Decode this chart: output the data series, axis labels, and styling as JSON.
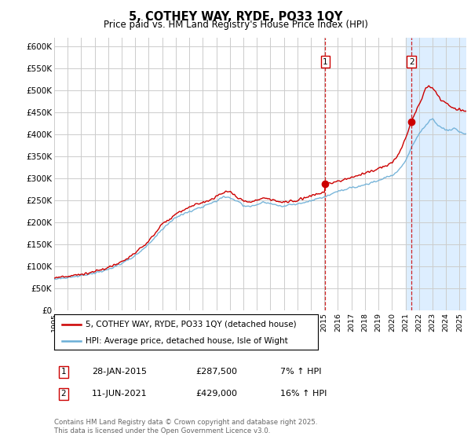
{
  "title": "5, COTHEY WAY, RYDE, PO33 1QY",
  "subtitle": "Price paid vs. HM Land Registry's House Price Index (HPI)",
  "ylim": [
    0,
    620000
  ],
  "yticks": [
    0,
    50000,
    100000,
    150000,
    200000,
    250000,
    300000,
    350000,
    400000,
    450000,
    500000,
    550000,
    600000
  ],
  "line1_color": "#cc0000",
  "line2_color": "#6baed6",
  "shaded_color": "#ddeeff",
  "grid_color": "#cccccc",
  "background_color": "#ffffff",
  "purchase1_date": "28-JAN-2015",
  "purchase1_price": 287500,
  "purchase1_pct": "7%",
  "purchase2_date": "11-JUN-2021",
  "purchase2_price": 429000,
  "purchase2_pct": "16%",
  "legend_line1": "5, COTHEY WAY, RYDE, PO33 1QY (detached house)",
  "legend_line2": "HPI: Average price, detached house, Isle of Wight",
  "footer": "Contains HM Land Registry data © Crown copyright and database right 2025.\nThis data is licensed under the Open Government Licence v3.0.",
  "purchase1_x": 2015.07,
  "purchase2_x": 2021.44,
  "shade_start": 2021.0,
  "shade_end": 2025.5,
  "xmin": 1995.0,
  "xmax": 2025.5
}
